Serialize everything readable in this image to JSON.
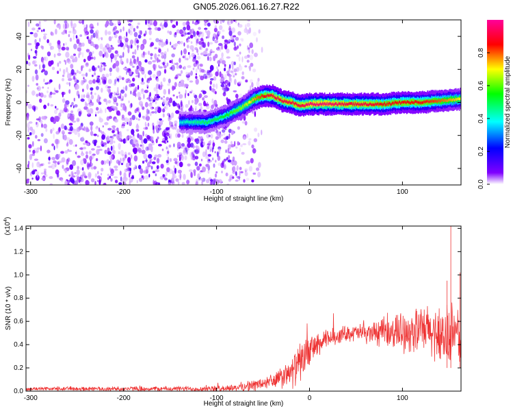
{
  "title": "GN05.2026.061.16.27.R22",
  "chart_data": [
    {
      "type": "heatmap",
      "title": "GN05.2026.061.16.27.R22",
      "xlabel": "Height of straight line (km)",
      "ylabel": "Frequency (Hz)",
      "xlim": [
        -305,
        163
      ],
      "ylim": [
        -50,
        50
      ],
      "xticks": [
        -300,
        -200,
        -100,
        0,
        100
      ],
      "yticks": [
        -40,
        -20,
        0,
        20,
        40
      ],
      "colorbar": {
        "label": "Normalized spectral amplitude",
        "range": [
          0.0,
          1.0
        ],
        "ticks": [
          0.0,
          0.2,
          0.4,
          0.6,
          0.8
        ],
        "colors": [
          "#ffffff",
          "#8000ff",
          "#0000ff",
          "#00ffff",
          "#00ff00",
          "#ffff00",
          "#ff0000",
          "#ff00a0"
        ]
      },
      "noise_region_x": [
        -305,
        -75
      ],
      "signal_ridge": {
        "x": [
          -140,
          -110,
          -100,
          -90,
          -80,
          -70,
          -60,
          -50,
          -40,
          -30,
          -20,
          -10,
          0,
          20,
          40,
          60,
          80,
          100,
          120,
          140,
          163
        ],
        "freq": [
          -12,
          -12,
          -10,
          -8,
          -5,
          -2,
          2,
          4,
          4,
          1,
          0,
          -2,
          -1,
          -1,
          -1,
          -1,
          -1,
          0,
          0,
          1,
          2
        ],
        "peak_amplitude": [
          0.4,
          0.5,
          0.5,
          0.55,
          0.6,
          0.65,
          0.75,
          0.85,
          0.9,
          0.9,
          0.9,
          0.9,
          0.95,
          0.95,
          0.9,
          0.9,
          0.85,
          0.85,
          0.85,
          0.8,
          0.7
        ]
      }
    },
    {
      "type": "line",
      "xlabel": "Height of straight line (km)",
      "ylabel": "SNR (10 * v/v)",
      "y_multiplier": "(x10",
      "y_multiplier_exp": "4",
      "y_multiplier_close": ")",
      "xlim": [
        -305,
        163
      ],
      "ylim": [
        0.0,
        1.42
      ],
      "xticks": [
        -300,
        -200,
        -100,
        0,
        100
      ],
      "yticks": [
        0.0,
        0.2,
        0.4,
        0.6,
        0.8,
        1.0,
        1.2,
        1.4
      ],
      "color": "#ee3333",
      "series_envelope": {
        "x": [
          -305,
          -100,
          -80,
          -60,
          -40,
          -20,
          -10,
          0,
          20,
          40,
          60,
          80,
          100,
          120,
          140,
          150,
          163
        ],
        "mean": [
          0.02,
          0.02,
          0.03,
          0.05,
          0.08,
          0.15,
          0.25,
          0.35,
          0.45,
          0.5,
          0.5,
          0.5,
          0.52,
          0.52,
          0.5,
          0.45,
          0.5
        ],
        "spread": [
          0.02,
          0.03,
          0.04,
          0.06,
          0.08,
          0.15,
          0.2,
          0.15,
          0.1,
          0.08,
          0.1,
          0.15,
          0.2,
          0.25,
          0.3,
          0.35,
          0.3
        ]
      },
      "spikes": [
        {
          "x": 152,
          "y": 1.42
        },
        {
          "x": 148,
          "y": 0.95
        },
        {
          "x": 162,
          "y": 1.02
        }
      ]
    }
  ]
}
